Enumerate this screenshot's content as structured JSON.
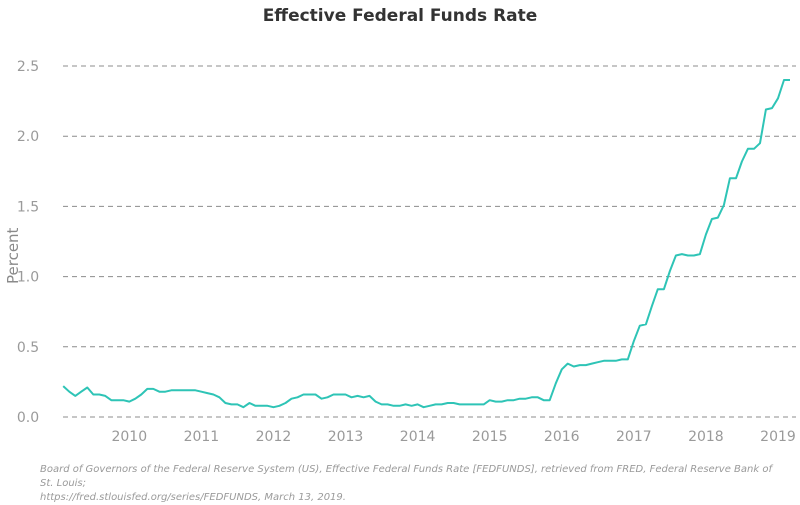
{
  "chart_data": {
    "type": "line",
    "title": "Effective Federal Funds Rate",
    "xlabel": "",
    "ylabel": "Percent",
    "xlim": [
      2009.08,
      2019.25
    ],
    "ylim": [
      0,
      2.5
    ],
    "grid": "horizontal-dashed",
    "line_color": "#2ec4b6",
    "x_ticks": [
      "2010",
      "2011",
      "2012",
      "2013",
      "2014",
      "2015",
      "2016",
      "2017",
      "2018",
      "2019"
    ],
    "y_ticks": [
      "0.0",
      "0.5",
      "1.0",
      "1.5",
      "2.0",
      "2.5"
    ],
    "series": [
      {
        "x": [
          2009.083,
          2009.167,
          2009.25,
          2009.333,
          2009.417,
          2009.5,
          2009.583,
          2009.667,
          2009.75,
          2009.833,
          2009.917,
          2010.0,
          2010.083,
          2010.167,
          2010.25,
          2010.333,
          2010.417,
          2010.5,
          2010.583,
          2010.667,
          2010.75,
          2010.833,
          2010.917,
          2011.0,
          2011.083,
          2011.167,
          2011.25,
          2011.333,
          2011.417,
          2011.5,
          2011.583,
          2011.667,
          2011.75,
          2011.833,
          2011.917,
          2012.0,
          2012.083,
          2012.167,
          2012.25,
          2012.333,
          2012.417,
          2012.5,
          2012.583,
          2012.667,
          2012.75,
          2012.833,
          2012.917,
          2013.0,
          2013.083,
          2013.167,
          2013.25,
          2013.333,
          2013.417,
          2013.5,
          2013.583,
          2013.667,
          2013.75,
          2013.833,
          2013.917,
          2014.0,
          2014.083,
          2014.167,
          2014.25,
          2014.333,
          2014.417,
          2014.5,
          2014.583,
          2014.667,
          2014.75,
          2014.833,
          2014.917,
          2015.0,
          2015.083,
          2015.167,
          2015.25,
          2015.333,
          2015.417,
          2015.5,
          2015.583,
          2015.667,
          2015.75,
          2015.833,
          2015.917,
          2016.0,
          2016.083,
          2016.167,
          2016.25,
          2016.333,
          2016.417,
          2016.5,
          2016.583,
          2016.667,
          2016.75,
          2016.833,
          2016.917,
          2017.0,
          2017.083,
          2017.167,
          2017.25,
          2017.333,
          2017.417,
          2017.5,
          2017.583,
          2017.667,
          2017.75,
          2017.833,
          2017.917,
          2018.0,
          2018.083,
          2018.167,
          2018.25,
          2018.333,
          2018.417,
          2018.5,
          2018.583,
          2018.667,
          2018.75,
          2018.833,
          2018.917,
          2019.0,
          2019.083,
          2019.167
        ],
        "y": [
          0.22,
          0.18,
          0.15,
          0.18,
          0.21,
          0.16,
          0.16,
          0.15,
          0.12,
          0.12,
          0.12,
          0.11,
          0.13,
          0.16,
          0.2,
          0.2,
          0.18,
          0.18,
          0.19,
          0.19,
          0.19,
          0.19,
          0.19,
          0.18,
          0.17,
          0.16,
          0.14,
          0.1,
          0.09,
          0.09,
          0.07,
          0.1,
          0.08,
          0.08,
          0.08,
          0.07,
          0.08,
          0.1,
          0.13,
          0.14,
          0.16,
          0.16,
          0.16,
          0.13,
          0.14,
          0.16,
          0.16,
          0.16,
          0.14,
          0.15,
          0.14,
          0.15,
          0.11,
          0.09,
          0.09,
          0.08,
          0.08,
          0.09,
          0.08,
          0.09,
          0.07,
          0.08,
          0.09,
          0.09,
          0.1,
          0.1,
          0.09,
          0.09,
          0.09,
          0.09,
          0.09,
          0.12,
          0.11,
          0.11,
          0.12,
          0.12,
          0.13,
          0.13,
          0.14,
          0.14,
          0.12,
          0.12,
          0.24,
          0.34,
          0.38,
          0.36,
          0.37,
          0.37,
          0.38,
          0.39,
          0.4,
          0.4,
          0.4,
          0.41,
          0.41,
          0.54,
          0.65,
          0.66,
          0.79,
          0.91,
          0.91,
          1.04,
          1.15,
          1.16,
          1.15,
          1.15,
          1.16,
          1.3,
          1.41,
          1.42,
          1.51,
          1.7,
          1.7,
          1.82,
          1.91,
          1.91,
          1.95,
          2.19,
          2.2,
          2.27,
          2.4,
          2.4
        ]
      }
    ],
    "source_line1": "Board of Governors of the Federal Reserve System (US), Effective Federal Funds Rate [FEDFUNDS], retrieved from FRED, Federal Reserve Bank of St. Louis;",
    "source_line2": "https://fred.stlouisfed.org/series/FEDFUNDS, March 13, 2019."
  }
}
